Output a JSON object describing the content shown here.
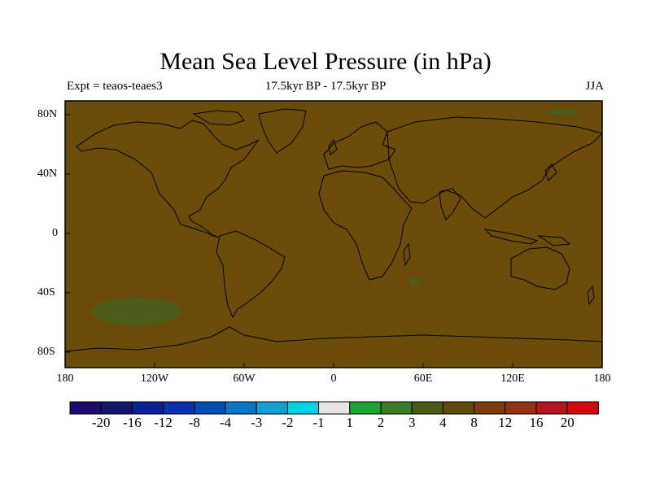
{
  "title": "Mean Sea Level Pressure (in hPa)",
  "subtitle_left": "Expt = teaos-teaes3",
  "subtitle_center": "17.5kyr BP - 17.5kyr BP",
  "subtitle_right": "JJA",
  "lat_ticks": [
    "80N",
    "40N",
    "0",
    "40S",
    "80S"
  ],
  "lon_ticks": [
    "180",
    "120W",
    "60W",
    "0",
    "60E",
    "120E",
    "180"
  ],
  "colorbar": {
    "colors": [
      "#1e0a6e",
      "#14146e",
      "#0a1e96",
      "#0a32aa",
      "#0050b4",
      "#0a78c8",
      "#14a0d2",
      "#00d2e6",
      "#e6e6e6",
      "#1ea532",
      "#3c7d28",
      "#4b5a14",
      "#5f4b0a",
      "#7d3c0a",
      "#963214",
      "#b4141e",
      "#d20a0a"
    ],
    "labels": [
      "-20",
      "-16",
      "-12",
      "-8",
      "-4",
      "-3",
      "-2",
      "-1",
      "1",
      "2",
      "3",
      "4",
      "8",
      "12",
      "16",
      "20"
    ]
  },
  "colors": {
    "map_fill": "#6b4b0a",
    "anomaly_patch": "#4f5c1c"
  }
}
